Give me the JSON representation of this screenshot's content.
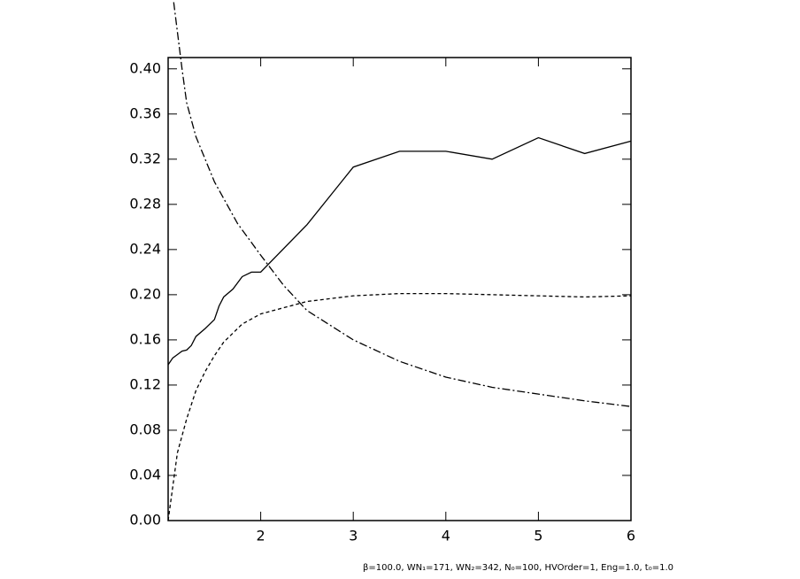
{
  "chart_data": {
    "type": "line",
    "xlim": [
      1,
      6
    ],
    "ylim": [
      0,
      0.41
    ],
    "xticks": [
      2,
      3,
      4,
      5,
      6
    ],
    "yticks": [
      {
        "value": 0,
        "label": "0.00"
      },
      {
        "value": 0.04,
        "label": "0.04"
      },
      {
        "value": 0.08,
        "label": "0.08"
      },
      {
        "value": 0.12,
        "label": "0.12"
      },
      {
        "value": 0.16,
        "label": "0.16"
      },
      {
        "value": 0.2,
        "label": "0.20"
      },
      {
        "value": 0.24,
        "label": "0.24"
      },
      {
        "value": 0.28,
        "label": "0.28"
      },
      {
        "value": 0.32,
        "label": "0.32"
      },
      {
        "value": 0.36,
        "label": "0.36"
      },
      {
        "value": 0.4,
        "label": "0.40"
      }
    ],
    "grid": false,
    "note": "β=100.0, WN₁=171, WN₂=342, N₀=100, HVOrder=1, Eng=1.0, t₀=1.0",
    "series": [
      {
        "color": "#000000",
        "dash": "solid",
        "x": [
          1.0,
          1.05,
          1.1,
          1.15,
          1.2,
          1.25,
          1.3,
          1.4,
          1.5,
          1.55,
          1.6,
          1.7,
          1.8,
          1.9,
          2.0,
          2.5,
          3.0,
          3.5,
          4.0,
          4.5,
          5.0,
          5.5,
          6.0
        ],
        "values": [
          0.138,
          0.144,
          0.147,
          0.15,
          0.151,
          0.155,
          0.163,
          0.17,
          0.178,
          0.19,
          0.198,
          0.205,
          0.216,
          0.22,
          0.22,
          0.262,
          0.313,
          0.327,
          0.327,
          0.32,
          0.339,
          0.325,
          0.336
        ]
      },
      {
        "color": "#000000",
        "dash": "dashed",
        "x": [
          1.0,
          1.05,
          1.1,
          1.2,
          1.3,
          1.4,
          1.5,
          1.6,
          1.8,
          2.0,
          2.5,
          3.0,
          3.5,
          4.0,
          4.5,
          5.0,
          5.5,
          6.0
        ],
        "values": [
          0.0,
          0.03,
          0.06,
          0.09,
          0.115,
          0.132,
          0.146,
          0.158,
          0.174,
          0.183,
          0.194,
          0.199,
          0.201,
          0.201,
          0.2,
          0.199,
          0.198,
          0.199
        ]
      },
      {
        "color": "#000000",
        "dash": "dashdot",
        "x": [
          1.06,
          1.15,
          1.2,
          1.3,
          1.5,
          1.75,
          2.0,
          2.25,
          2.5,
          3.0,
          3.5,
          4.0,
          4.5,
          5.0,
          5.5,
          6.0
        ],
        "values": [
          0.459,
          0.4,
          0.37,
          0.34,
          0.3,
          0.263,
          0.235,
          0.208,
          0.186,
          0.16,
          0.141,
          0.127,
          0.118,
          0.112,
          0.106,
          0.101
        ]
      }
    ]
  }
}
